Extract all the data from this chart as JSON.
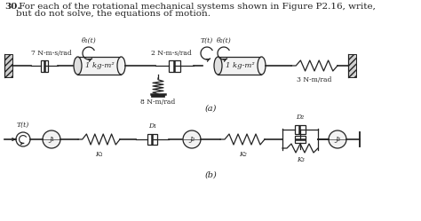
{
  "bg_color": "#ffffff",
  "text_color": "#222222",
  "line_color": "#222222",
  "title_num": "30.",
  "title_text1": " For each of the rotational mechanical systems shown in Figure P2.16, write,",
  "title_text2": "but do not solve, the equations of motion.",
  "label_7": "7 N-m-s/rad",
  "label_2": "2 N-m-s/rad",
  "label_8": "8 N-m/rad",
  "label_3": "3 N-m/rad",
  "label_1kgm2_a": "1 kg-m²",
  "label_1kgm2_b": "1 kg-m²",
  "label_theta1": "θ₁(t)",
  "label_Tt_a": "T(t)",
  "label_theta2": "θ₂(t)",
  "label_Tb": "T(t)",
  "label_J1": "J₁",
  "label_J2": "J₂",
  "label_J3": "J₃",
  "label_K1": "K₁",
  "label_K2": "K₂",
  "label_K3": "K₃",
  "label_D1": "D₁",
  "label_D2": "D₂",
  "diagram_a_label": "(a)",
  "diagram_b_label": "(b)",
  "font_size_title": 7.5,
  "font_size_label": 6.0,
  "font_size_small": 5.5
}
